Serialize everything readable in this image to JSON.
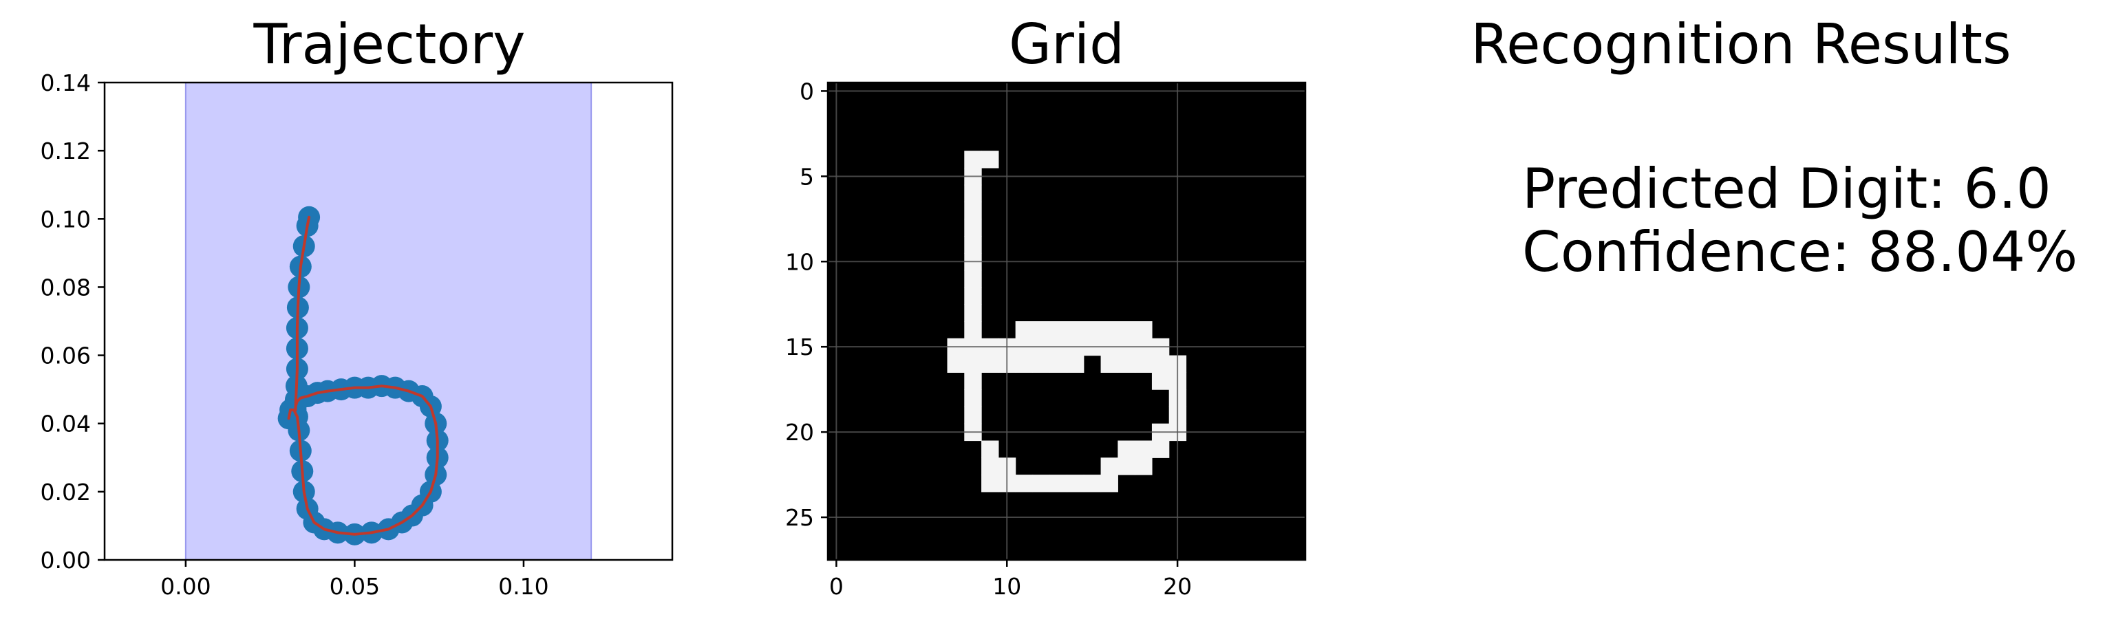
{
  "chart_data": [
    {
      "type": "line",
      "title": "Trajectory",
      "xlabel": "",
      "ylabel": "",
      "xlim": [
        -0.024,
        0.144
      ],
      "ylim": [
        0.0,
        0.14
      ],
      "x_ticks": [
        0.0,
        0.05,
        0.1
      ],
      "x_tick_labels": [
        "0.00",
        "0.05",
        "0.10"
      ],
      "y_ticks": [
        0.0,
        0.02,
        0.04,
        0.06,
        0.08,
        0.1,
        0.12,
        0.14
      ],
      "y_tick_labels": [
        "0.00",
        "0.02",
        "0.04",
        "0.06",
        "0.08",
        "0.10",
        "0.12",
        "0.14"
      ],
      "grid": false,
      "shaded_region": {
        "x": [
          0.0,
          0.12
        ],
        "y": [
          0.0,
          0.14
        ],
        "color": "#ccccff",
        "edge_color": "#9999ee"
      },
      "series": [
        {
          "marker_color": "#1f77b4",
          "line_color": "#c0392b",
          "x": [
            0.0365,
            0.036,
            0.035,
            0.034,
            0.0335,
            0.0332,
            0.033,
            0.033,
            0.033,
            0.0328,
            0.0326,
            0.0325,
            0.0325,
            0.033,
            0.034,
            0.036,
            0.039,
            0.042,
            0.046,
            0.05,
            0.054,
            0.058,
            0.062,
            0.066,
            0.07,
            0.0725,
            0.074,
            0.0745,
            0.0745,
            0.074,
            0.0725,
            0.07,
            0.067,
            0.064,
            0.06,
            0.055,
            0.05,
            0.045,
            0.041,
            0.038,
            0.036,
            0.035,
            0.0345,
            0.034,
            0.0335,
            0.033,
            0.032,
            0.031,
            0.0305
          ],
          "y": [
            0.1005,
            0.098,
            0.092,
            0.086,
            0.08,
            0.074,
            0.068,
            0.062,
            0.056,
            0.051,
            0.047,
            0.044,
            0.045,
            0.0465,
            0.0475,
            0.048,
            0.049,
            0.0495,
            0.05,
            0.0505,
            0.0505,
            0.051,
            0.0505,
            0.0495,
            0.048,
            0.045,
            0.04,
            0.035,
            0.03,
            0.025,
            0.02,
            0.016,
            0.013,
            0.011,
            0.009,
            0.008,
            0.0075,
            0.008,
            0.009,
            0.011,
            0.015,
            0.02,
            0.026,
            0.032,
            0.038,
            0.042,
            0.044,
            0.044,
            0.0415
          ]
        }
      ]
    },
    {
      "type": "heatmap",
      "title": "Grid",
      "xlabel": "",
      "ylabel": "",
      "x_ticks": [
        0,
        10,
        20
      ],
      "x_tick_labels": [
        "0",
        "10",
        "20"
      ],
      "y_ticks": [
        0,
        5,
        10,
        15,
        20,
        25
      ],
      "y_tick_labels": [
        "0",
        "5",
        "10",
        "15",
        "20",
        "25"
      ],
      "grid": true,
      "size": [
        28,
        28
      ],
      "colors": {
        "on": "#f4f4f4",
        "off": "#000000",
        "grid": "#555555"
      },
      "on_cells": [
        [
          4,
          8
        ],
        [
          4,
          9
        ],
        [
          5,
          8
        ],
        [
          6,
          8
        ],
        [
          7,
          8
        ],
        [
          8,
          8
        ],
        [
          9,
          8
        ],
        [
          10,
          8
        ],
        [
          11,
          8
        ],
        [
          12,
          8
        ],
        [
          13,
          8
        ],
        [
          14,
          8
        ],
        [
          14,
          11
        ],
        [
          14,
          12
        ],
        [
          14,
          13
        ],
        [
          14,
          14
        ],
        [
          14,
          15
        ],
        [
          14,
          16
        ],
        [
          14,
          17
        ],
        [
          14,
          18
        ],
        [
          15,
          7
        ],
        [
          15,
          8
        ],
        [
          15,
          9
        ],
        [
          15,
          10
        ],
        [
          15,
          11
        ],
        [
          15,
          12
        ],
        [
          15,
          13
        ],
        [
          15,
          14
        ],
        [
          15,
          15
        ],
        [
          15,
          16
        ],
        [
          15,
          17
        ],
        [
          15,
          18
        ],
        [
          15,
          19
        ],
        [
          16,
          7
        ],
        [
          16,
          8
        ],
        [
          16,
          9
        ],
        [
          16,
          10
        ],
        [
          16,
          11
        ],
        [
          16,
          12
        ],
        [
          16,
          13
        ],
        [
          16,
          14
        ],
        [
          16,
          16
        ],
        [
          16,
          17
        ],
        [
          16,
          18
        ],
        [
          16,
          19
        ],
        [
          16,
          20
        ],
        [
          17,
          8
        ],
        [
          17,
          19
        ],
        [
          17,
          20
        ],
        [
          18,
          8
        ],
        [
          18,
          20
        ],
        [
          19,
          8
        ],
        [
          19,
          20
        ],
        [
          20,
          8
        ],
        [
          20,
          19
        ],
        [
          20,
          20
        ],
        [
          21,
          9
        ],
        [
          21,
          17
        ],
        [
          21,
          18
        ],
        [
          21,
          19
        ],
        [
          22,
          9
        ],
        [
          22,
          10
        ],
        [
          22,
          16
        ],
        [
          22,
          17
        ],
        [
          22,
          18
        ],
        [
          23,
          9
        ],
        [
          23,
          10
        ],
        [
          23,
          11
        ],
        [
          23,
          12
        ],
        [
          23,
          13
        ],
        [
          23,
          14
        ],
        [
          23,
          15
        ],
        [
          23,
          16
        ]
      ]
    }
  ],
  "results": {
    "title": "Recognition Results",
    "predicted": "Predicted Digit: 6.0",
    "confidence": "Confidence: 88.04%"
  }
}
